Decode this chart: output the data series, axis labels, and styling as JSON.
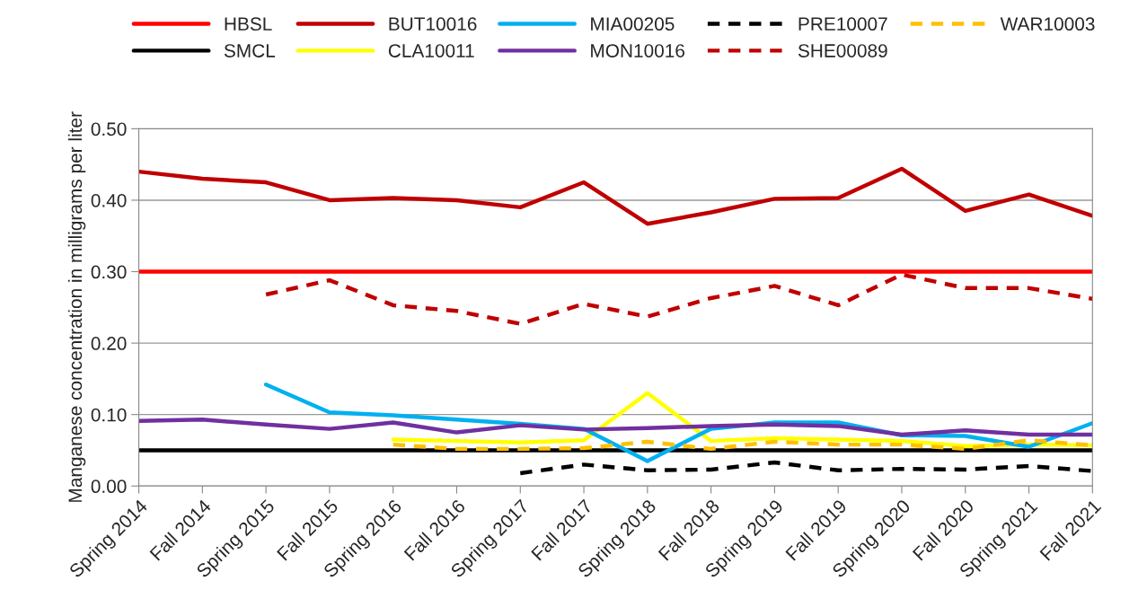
{
  "chart_data": {
    "type": "line",
    "ylabel": "Manganese concentration in milligrams per liter",
    "categories": [
      "Spring 2014",
      "Fall 2014",
      "Spring 2015",
      "Fall 2015",
      "Spring 2016",
      "Fall 2016",
      "Spring 2017",
      "Fall 2017",
      "Spring 2018",
      "Fall 2018",
      "Spring 2019",
      "Fall 2019",
      "Spring 2020",
      "Fall 2020",
      "Spring 2021",
      "Fall 2021"
    ],
    "series": [
      {
        "name": "HBSL",
        "color": "#ff0000",
        "line_style": "solid",
        "values": [
          0.3,
          0.3,
          0.3,
          0.3,
          0.3,
          0.3,
          0.3,
          0.3,
          0.3,
          0.3,
          0.3,
          0.3,
          0.3,
          0.3,
          0.3,
          0.3
        ]
      },
      {
        "name": "SMCL",
        "color": "#000000",
        "line_style": "solid",
        "values": [
          0.05,
          0.05,
          0.05,
          0.05,
          0.05,
          0.05,
          0.05,
          0.05,
          0.05,
          0.05,
          0.05,
          0.05,
          0.05,
          0.05,
          0.05,
          0.05
        ]
      },
      {
        "name": "BUT10016",
        "color": "#c00000",
        "line_style": "solid",
        "values": [
          0.44,
          0.43,
          0.425,
          0.4,
          0.403,
          0.4,
          0.39,
          0.425,
          0.367,
          0.383,
          0.402,
          0.403,
          0.444,
          0.385,
          0.408,
          0.378
        ]
      },
      {
        "name": "CLA10011",
        "color": "#ffff00",
        "line_style": "solid",
        "values": [
          null,
          null,
          null,
          null,
          0.065,
          0.063,
          0.061,
          0.064,
          0.13,
          0.063,
          0.067,
          0.065,
          0.063,
          0.056,
          0.058,
          0.057
        ]
      },
      {
        "name": "MIA00205",
        "color": "#00b0f0",
        "line_style": "solid",
        "values": [
          null,
          null,
          0.142,
          0.103,
          0.099,
          0.093,
          0.087,
          0.08,
          0.035,
          0.08,
          0.089,
          0.089,
          0.071,
          0.07,
          0.055,
          0.088
        ]
      },
      {
        "name": "MON10016",
        "color": "#7030a0",
        "line_style": "solid",
        "values": [
          0.091,
          0.093,
          0.086,
          0.08,
          0.089,
          0.075,
          0.085,
          0.079,
          0.081,
          0.084,
          0.086,
          0.084,
          0.072,
          0.078,
          0.072,
          0.072
        ]
      },
      {
        "name": "PRE10007",
        "color": "#000000",
        "line_style": "dashed",
        "values": [
          null,
          null,
          null,
          null,
          null,
          null,
          0.018,
          0.03,
          0.022,
          0.023,
          0.033,
          0.022,
          0.024,
          0.023,
          0.028,
          0.021
        ]
      },
      {
        "name": "SHE00089",
        "color": "#c00000",
        "line_style": "dashed",
        "values": [
          null,
          null,
          0.268,
          0.288,
          0.253,
          0.245,
          0.227,
          0.255,
          0.237,
          0.263,
          0.28,
          0.253,
          0.296,
          0.277,
          0.277,
          0.262
        ]
      },
      {
        "name": "WAR10003",
        "color": "#ffc000",
        "line_style": "dashed",
        "values": [
          null,
          null,
          null,
          null,
          0.058,
          0.052,
          0.052,
          0.053,
          0.062,
          0.052,
          0.062,
          0.058,
          0.058,
          0.052,
          0.064,
          0.057
        ]
      }
    ],
    "ylim": [
      0,
      0.5
    ],
    "yticks": [
      {
        "value": 0,
        "label": "0.00"
      },
      {
        "value": 0.1,
        "label": "0.10"
      },
      {
        "value": 0.2,
        "label": "0.20"
      },
      {
        "value": 0.3,
        "label": "0.30"
      },
      {
        "value": 0.4,
        "label": "0.40"
      },
      {
        "value": 0.5,
        "label": "0.50"
      }
    ],
    "grid": "y",
    "legend": "top",
    "marker": "none"
  }
}
